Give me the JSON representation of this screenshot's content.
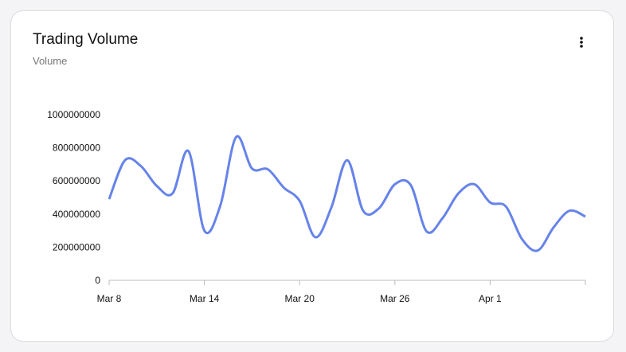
{
  "header": {
    "title": "Trading Volume",
    "subtitle": "Volume"
  },
  "chart_data": {
    "type": "line",
    "categories": [
      "Mar 8",
      null,
      null,
      null,
      null,
      null,
      "Mar 14",
      null,
      null,
      null,
      null,
      null,
      "Mar 20",
      null,
      null,
      null,
      null,
      null,
      "Mar 26",
      null,
      null,
      null,
      null,
      null,
      "Apr 1",
      null,
      null,
      null,
      null,
      null,
      null
    ],
    "series": [
      {
        "name": "Volume",
        "color": "#6683ea",
        "values": [
          490000000,
          725000000,
          690000000,
          570000000,
          525000000,
          780000000,
          300000000,
          450000000,
          865000000,
          675000000,
          670000000,
          560000000,
          480000000,
          260000000,
          440000000,
          725000000,
          420000000,
          435000000,
          580000000,
          575000000,
          295000000,
          375000000,
          525000000,
          580000000,
          470000000,
          445000000,
          250000000,
          180000000,
          320000000,
          420000000,
          385000000
        ]
      }
    ],
    "ylim": [
      0,
      1000000000
    ],
    "yticks": [
      0,
      200000000,
      400000000,
      600000000,
      800000000,
      1000000000
    ],
    "grid": false
  }
}
